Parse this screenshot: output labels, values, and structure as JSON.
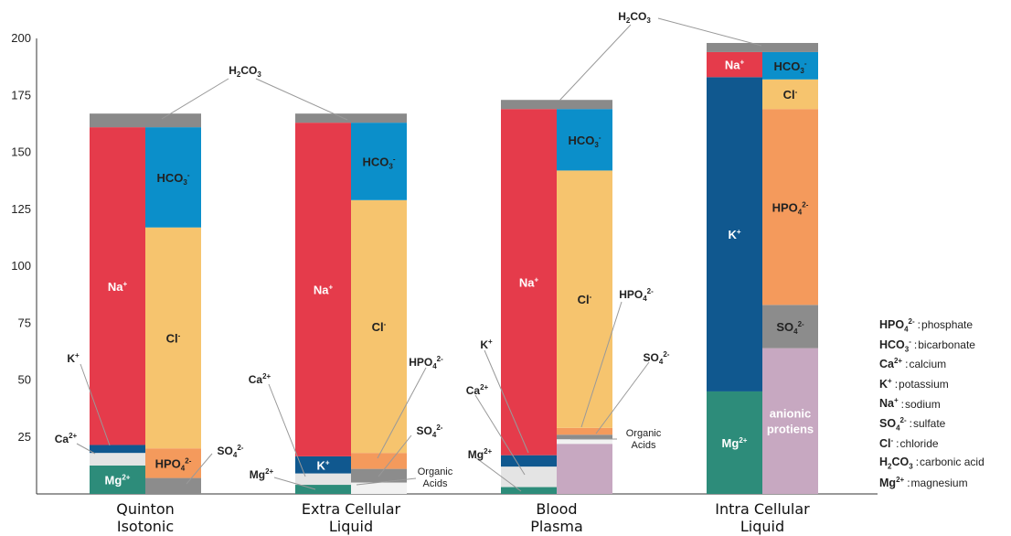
{
  "chart_data": {
    "type": "bar",
    "stacked": true,
    "ylim": [
      0,
      200
    ],
    "yticks": [
      25,
      50,
      75,
      100,
      125,
      150,
      175,
      200
    ],
    "grid": false,
    "categories": [
      {
        "name": [
          "Quinton",
          "Isotonic"
        ],
        "cations": [
          {
            "ion": "Mg2+",
            "from": 0,
            "to": 12.5,
            "color": "#2d8c7a",
            "label": "Mg2+",
            "labelColor": "#ffffff"
          },
          {
            "ion": "Ca2+",
            "from": 12.5,
            "to": 18,
            "color": "#e4e4e4"
          },
          {
            "ion": "K+",
            "from": 18,
            "to": 21.5,
            "color": "#10588f"
          },
          {
            "ion": "Na+",
            "from": 21.5,
            "to": 161,
            "color": "#e53b4b",
            "label": "Na+",
            "labelColor": "#ffffff"
          }
        ],
        "anions": [
          {
            "ion": "SO42-",
            "from": 0,
            "to": 7,
            "color": "#8c8c8c"
          },
          {
            "ion": "HPO42-",
            "from": 7,
            "to": 20,
            "color": "#f49a5c",
            "label": "HPO42-",
            "labelColor": "#222222"
          },
          {
            "ion": "Cl-",
            "from": 20,
            "to": 117,
            "color": "#f6c46e",
            "label": "Cl-",
            "labelColor": "#222222"
          },
          {
            "ion": "HCO3-",
            "from": 117,
            "to": 161,
            "color": "#0b8fca",
            "label": "HCO3-",
            "labelColor": "#222222"
          }
        ],
        "h2co3": [
          161,
          167
        ]
      },
      {
        "name": [
          "Extra Cellular",
          "Liquid"
        ],
        "cations": [
          {
            "ion": "Mg2+",
            "from": 0,
            "to": 4,
            "color": "#2d8c7a"
          },
          {
            "ion": "Ca2+",
            "from": 4,
            "to": 9,
            "color": "#e4e4e4"
          },
          {
            "ion": "K+",
            "from": 9,
            "to": 16.5,
            "color": "#10588f",
            "label": "K+",
            "labelColor": "#ffffff"
          },
          {
            "ion": "Na+",
            "from": 16.5,
            "to": 163,
            "color": "#e53b4b",
            "label": "Na+",
            "labelColor": "#ffffff"
          }
        ],
        "anions": [
          {
            "ion": "Organic Acids",
            "from": 0,
            "to": 5,
            "color": "#f2f2f2"
          },
          {
            "ion": "SO42-",
            "from": 5,
            "to": 11,
            "color": "#8c8c8c"
          },
          {
            "ion": "HPO42-",
            "from": 11,
            "to": 18,
            "color": "#f49a5c"
          },
          {
            "ion": "Cl-",
            "from": 18,
            "to": 129,
            "color": "#f6c46e",
            "label": "Cl-",
            "labelColor": "#222222"
          },
          {
            "ion": "HCO3-",
            "from": 129,
            "to": 163,
            "color": "#0b8fca",
            "label": "HCO3-",
            "labelColor": "#222222"
          }
        ],
        "h2co3": [
          163,
          167
        ]
      },
      {
        "name": [
          "Blood",
          "Plasma"
        ],
        "cations": [
          {
            "ion": "Mg2+",
            "from": 0,
            "to": 3,
            "color": "#2d8c7a"
          },
          {
            "ion": "Ca2+",
            "from": 3,
            "to": 12,
            "color": "#e4e4e4"
          },
          {
            "ion": "K+",
            "from": 12,
            "to": 17,
            "color": "#10588f"
          },
          {
            "ion": "Na+",
            "from": 17,
            "to": 169,
            "color": "#e53b4b",
            "label": "Na+",
            "labelColor": "#ffffff"
          }
        ],
        "anions": [
          {
            "ion": "Proteins",
            "from": 0,
            "to": 22,
            "color": "#c7a8c1"
          },
          {
            "ion": "Organic Acids",
            "from": 22,
            "to": 24,
            "color": "#f2f2f2"
          },
          {
            "ion": "SO42-",
            "from": 24,
            "to": 26,
            "color": "#8c8c8c"
          },
          {
            "ion": "HPO42-",
            "from": 26,
            "to": 29,
            "color": "#f49a5c"
          },
          {
            "ion": "Cl-",
            "from": 29,
            "to": 142,
            "color": "#f6c46e",
            "label": "Cl-",
            "labelColor": "#222222"
          },
          {
            "ion": "HCO3-",
            "from": 142,
            "to": 169,
            "color": "#0b8fca",
            "label": "HCO3-",
            "labelColor": "#222222"
          }
        ],
        "h2co3": [
          169,
          173
        ]
      },
      {
        "name": [
          "Intra Cellular",
          "Liquid"
        ],
        "cations": [
          {
            "ion": "Mg2+",
            "from": 0,
            "to": 45,
            "color": "#2d8c7a",
            "label": "Mg2+",
            "labelColor": "#ffffff"
          },
          {
            "ion": "K+",
            "from": 45,
            "to": 183,
            "color": "#10588f",
            "label": "K+",
            "labelColor": "#ffffff"
          },
          {
            "ion": "Na+",
            "from": 183,
            "to": 194,
            "color": "#e53b4b",
            "label": "Na+",
            "labelColor": "#ffffff"
          }
        ],
        "anions": [
          {
            "ion": "Proteins",
            "from": 0,
            "to": 64,
            "color": "#c7a8c1",
            "label": "anionic protiens",
            "labelColor": "#ffffff"
          },
          {
            "ion": "SO42-",
            "from": 64,
            "to": 83,
            "color": "#8c8c8c",
            "label": "SO42-",
            "labelColor": "#222222"
          },
          {
            "ion": "HPO42-",
            "from": 83,
            "to": 169,
            "color": "#f49a5c",
            "label": "HPO42-",
            "labelColor": "#222222"
          },
          {
            "ion": "Cl-",
            "from": 169,
            "to": 182,
            "color": "#f6c46e",
            "label": "Cl-",
            "labelColor": "#222222"
          },
          {
            "ion": "HCO3-",
            "from": 182,
            "to": 194,
            "color": "#0b8fca",
            "label": "HCO3-",
            "labelColor": "#222222"
          }
        ],
        "h2co3": [
          194,
          198
        ]
      }
    ],
    "annotations": [
      {
        "text": "H2CO3",
        "category": 0
      },
      {
        "text": "K+",
        "category": 0
      },
      {
        "text": "Ca2+",
        "category": 0
      },
      {
        "text": "SO42-",
        "category": 0
      },
      {
        "text": "Ca2+",
        "category": 1
      },
      {
        "text": "Mg2+",
        "category": 1
      },
      {
        "text": "HPO42-",
        "category": 1
      },
      {
        "text": "SO42-",
        "category": 1
      },
      {
        "text": "Organic Acids",
        "category": 1
      },
      {
        "text": "K+",
        "category": 2
      },
      {
        "text": "Ca2+",
        "category": 2
      },
      {
        "text": "Mg2+",
        "category": 2
      },
      {
        "text": "HPO42-",
        "category": 2
      },
      {
        "text": "SO42-",
        "category": 2
      },
      {
        "text": "Organic Acids",
        "category": 2
      },
      {
        "text": "H2CO3",
        "category": 3
      }
    ],
    "legend_position": "right",
    "legend": [
      {
        "symbol": "HPO42-",
        "desc": "phosphate"
      },
      {
        "symbol": "HCO3-",
        "desc": "bicarbonate"
      },
      {
        "symbol": "Ca2+",
        "desc": "calcium"
      },
      {
        "symbol": "K+",
        "desc": "potassium"
      },
      {
        "symbol": "Na+",
        "desc": "sodium"
      },
      {
        "symbol": "SO42-",
        "desc": "sulfate"
      },
      {
        "symbol": "Cl-",
        "desc": "chloride"
      },
      {
        "symbol": "H2CO3",
        "desc": "carbonic acid"
      },
      {
        "symbol": "Mg2+",
        "desc": "magnesium"
      }
    ]
  }
}
